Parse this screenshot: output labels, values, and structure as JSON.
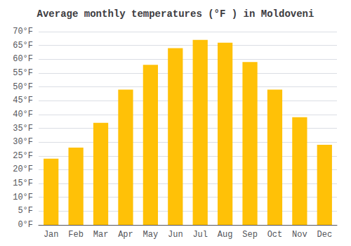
{
  "chart_data": {
    "type": "bar",
    "title": "Average monthly temperatures (°F ) in Moldoveni",
    "categories": [
      "Jan",
      "Feb",
      "Mar",
      "Apr",
      "May",
      "Jun",
      "Jul",
      "Aug",
      "Sep",
      "Oct",
      "Nov",
      "Dec"
    ],
    "values": [
      24,
      28,
      37,
      49,
      58,
      64,
      67,
      66,
      59,
      49,
      39,
      29
    ],
    "color": "#FFC107",
    "ylim": [
      0,
      70
    ],
    "yticks": [
      {
        "value": 0,
        "label": "0°F"
      },
      {
        "value": 5,
        "label": "5°F"
      },
      {
        "value": 10,
        "label": "10°F"
      },
      {
        "value": 15,
        "label": "15°F"
      },
      {
        "value": 20,
        "label": "20°F"
      },
      {
        "value": 25,
        "label": "25°F"
      },
      {
        "value": 30,
        "label": "30°F"
      },
      {
        "value": 35,
        "label": "35°F"
      },
      {
        "value": 40,
        "label": "40°F"
      },
      {
        "value": 45,
        "label": "45°F"
      },
      {
        "value": 50,
        "label": "50°F"
      },
      {
        "value": 55,
        "label": "55°F"
      },
      {
        "value": 60,
        "label": "60°F"
      },
      {
        "value": 65,
        "label": "65°F"
      },
      {
        "value": 70,
        "label": "70°F"
      }
    ],
    "grid": true
  }
}
